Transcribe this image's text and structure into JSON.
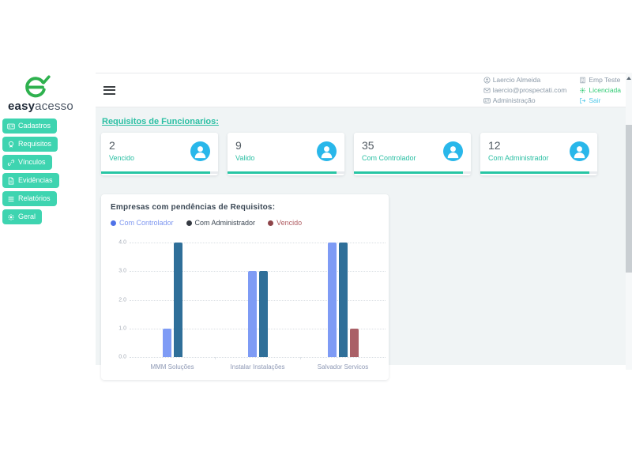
{
  "colors": {
    "teal_button": "#3ed4b0",
    "teal_dark": "#2abfa3",
    "progress_bar": "#27c5a4",
    "avatar_blue": "#29b7ea",
    "logo_green": "#2eb14e",
    "licenciada_green": "#2fca73",
    "sair_cyan": "#4fc8e9",
    "header_text_gray": "#8c9aa8"
  },
  "logo": {
    "bold": "easy",
    "light": "acesso"
  },
  "sidebar": {
    "items": [
      {
        "label": "Cadastros",
        "icon": "id-card-icon"
      },
      {
        "label": "Requisitos",
        "icon": "badge-icon"
      },
      {
        "label": "Vínculos",
        "icon": "link-icon"
      },
      {
        "label": "Evidências",
        "icon": "document-icon"
      },
      {
        "label": "Relatórios",
        "icon": "list-icon"
      },
      {
        "label": "Geral",
        "icon": "gear-icon"
      }
    ]
  },
  "header": {
    "user_column": [
      {
        "text": "Laercio Almeida",
        "icon": "user-icon",
        "color": "#8c9aa8",
        "interactable": false
      },
      {
        "text": "laercio@prospectati.com",
        "icon": "mail-icon",
        "color": "#8c9aa8",
        "interactable": false
      },
      {
        "text": "Administração",
        "icon": "id-card-icon",
        "color": "#8c9aa8",
        "interactable": false
      }
    ],
    "org_column": [
      {
        "text": "Emp Teste",
        "icon": "building-icon",
        "color": "#8c9aa8",
        "interactable": false
      },
      {
        "text": "Licenciada",
        "icon": "gear-icon",
        "color": "#2fca73",
        "interactable": true
      },
      {
        "text": "Sair",
        "icon": "logout-icon",
        "color": "#4fc8e9",
        "interactable": true
      }
    ]
  },
  "main": {
    "section_title": "Requisitos de Funcionarios:"
  },
  "cards": [
    {
      "value": "2",
      "label": "Vencido",
      "progress_pct": 93
    },
    {
      "value": "9",
      "label": "Valido",
      "progress_pct": 93
    },
    {
      "value": "35",
      "label": "Com Controlador",
      "progress_pct": 93
    },
    {
      "value": "12",
      "label": "Com Administrador",
      "progress_pct": 93
    }
  ],
  "chart_data": {
    "type": "bar",
    "title": "Empresas com pendências de Requisitos:",
    "categories": [
      "MMM Soluções",
      "Instalar Instalações",
      "Salvador Servicos"
    ],
    "series": [
      {
        "name": "Com Controlador",
        "values": [
          1,
          3,
          4
        ],
        "color": "#7e9bf5",
        "dot_color": "#4f72e8",
        "text_color": "#7e97f0"
      },
      {
        "name": "Com Administrador",
        "values": [
          4,
          3,
          4
        ],
        "color": "#2f6f99",
        "dot_color": "#353a42",
        "text_color": "#3d4854"
      },
      {
        "name": "Vencido",
        "values": [
          0,
          0,
          1
        ],
        "color": "#aa6067",
        "dot_color": "#8e4449",
        "text_color": "#b05d63"
      }
    ],
    "ylim": [
      0,
      4
    ],
    "yticks": [
      "0.0",
      "1.0",
      "2.0",
      "3.0",
      "4.0"
    ],
    "grid": "dotted-horizontal",
    "legend_position": "top-left"
  }
}
